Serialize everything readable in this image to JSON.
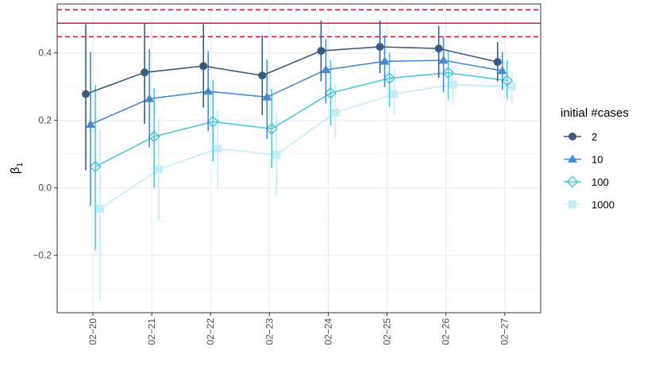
{
  "chart_data": {
    "type": "line",
    "title": "",
    "xlabel": "",
    "ylabel": "β",
    "ylabel_subscript": "1",
    "categories": [
      "02−20",
      "02−21",
      "02−22",
      "02−23",
      "02−24",
      "02−25",
      "02−26",
      "02−27"
    ],
    "ylim": [
      -0.37,
      0.545
    ],
    "yticks": [
      -0.2,
      0.0,
      0.2,
      0.4
    ],
    "ytick_labels": [
      "−0.2",
      "0.0",
      "0.2",
      "0.4"
    ],
    "grid": true,
    "legend_position": "right",
    "legend_title": "initial #cases",
    "reference_lines": [
      {
        "y": 0.488,
        "style": "solid",
        "color": "#dc143c"
      },
      {
        "y": 0.528,
        "style": "dashed",
        "color": "#dc143c"
      },
      {
        "y": 0.448,
        "style": "dashed",
        "color": "#dc143c"
      }
    ],
    "series": [
      {
        "name": "2",
        "color": "#3b5a7e",
        "marker": "circle",
        "values": [
          0.278,
          0.342,
          0.361,
          0.333,
          0.406,
          0.418,
          0.413,
          0.373
        ],
        "lower": [
          0.052,
          0.19,
          0.238,
          0.215,
          0.316,
          0.34,
          0.326,
          0.316
        ],
        "upper": [
          0.485,
          0.488,
          0.485,
          0.452,
          0.496,
          0.496,
          0.48,
          0.432
        ]
      },
      {
        "name": "10",
        "color": "#4a87cc",
        "marker": "triangle",
        "values": [
          0.188,
          0.264,
          0.286,
          0.269,
          0.35,
          0.375,
          0.378,
          0.347
        ],
        "lower": [
          -0.053,
          0.12,
          0.168,
          0.145,
          0.25,
          0.298,
          0.283,
          0.29
        ],
        "upper": [
          0.402,
          0.412,
          0.405,
          0.38,
          0.44,
          0.452,
          0.448,
          0.403
        ]
      },
      {
        "name": "100",
        "color": "#4fc5d7",
        "marker": "diamond-open",
        "values": [
          0.063,
          0.152,
          0.196,
          0.175,
          0.281,
          0.325,
          0.341,
          0.318
        ],
        "lower": [
          -0.185,
          0.0,
          0.078,
          0.058,
          0.185,
          0.24,
          0.262,
          0.262
        ],
        "upper": [
          0.305,
          0.295,
          0.32,
          0.293,
          0.378,
          0.4,
          0.405,
          0.378
        ]
      },
      {
        "name": "1000",
        "color": "#c4ecf6",
        "marker": "square",
        "values": [
          -0.062,
          0.055,
          0.116,
          0.098,
          0.223,
          0.278,
          0.306,
          0.3
        ],
        "lower": [
          -0.335,
          -0.098,
          0.002,
          -0.022,
          0.145,
          0.218,
          0.245,
          0.252
        ],
        "upper": [
          0.172,
          0.205,
          0.232,
          0.228,
          0.308,
          0.355,
          0.36,
          0.345
        ]
      }
    ]
  }
}
